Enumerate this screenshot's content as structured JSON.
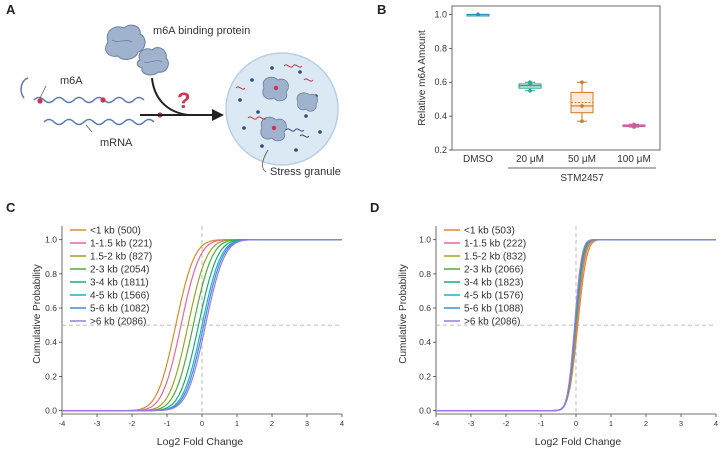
{
  "panel_a": {
    "label": "A",
    "binding_protein_label": "m6A binding protein",
    "m6a_label": "m6A",
    "mrna_label": "mRNA",
    "question_mark": "?",
    "stress_granule_label": "Stress granule"
  },
  "chart_data": [
    {
      "panel": "B",
      "type": "box",
      "title": "",
      "ylabel": "Relative m6A Amount",
      "xlabel": "",
      "ylim": [
        0.2,
        1.05
      ],
      "yticks": [
        0.2,
        0.4,
        0.6,
        0.8,
        1.0
      ],
      "ytick_labels": [
        "0.2",
        "0.4",
        "0.6",
        "0.8",
        "1.0"
      ],
      "categories": [
        "DMSO",
        "20 μM",
        "50 μM",
        "100 μM"
      ],
      "group_label": "STM2457",
      "colors": [
        "#2b8fb7",
        "#2aa58a",
        "#d07822",
        "#c95e9e"
      ],
      "boxes": [
        {
          "min": 1.0,
          "q1": 1.0,
          "median": 1.0,
          "q3": 1.0,
          "max": 1.0,
          "mean": 1.0
        },
        {
          "min": 0.55,
          "q1": 0.565,
          "median": 0.58,
          "q3": 0.59,
          "max": 0.6,
          "mean": 0.578
        },
        {
          "min": 0.37,
          "q1": 0.42,
          "median": 0.46,
          "q3": 0.54,
          "max": 0.6,
          "mean": 0.48
        },
        {
          "min": 0.335,
          "q1": 0.338,
          "median": 0.342,
          "q3": 0.348,
          "max": 0.352,
          "mean": 0.343
        }
      ],
      "points": [
        [
          1.0,
          1.0,
          1.0
        ],
        [
          0.55,
          0.59,
          0.6
        ],
        [
          0.37,
          0.46,
          0.6
        ],
        [
          0.335,
          0.342,
          0.352
        ]
      ]
    },
    {
      "panel": "C",
      "type": "line",
      "title": "",
      "xlabel": "Log2 Fold Change",
      "ylabel": "Cumulative Probability",
      "xlim": [
        -4,
        4
      ],
      "ylim": [
        -0.02,
        1.08
      ],
      "xticks": [
        -4,
        -3,
        -2,
        -1,
        0,
        1,
        2,
        3,
        4
      ],
      "xtick_labels": [
        "-4",
        "-3",
        "-2",
        "-1",
        "0",
        "1",
        "2",
        "3",
        "4"
      ],
      "yticks": [
        0.0,
        0.2,
        0.4,
        0.6,
        0.8,
        1.0
      ],
      "ytick_labels": [
        "0.0",
        "0.2",
        "0.4",
        "0.6",
        "0.8",
        "1.0"
      ],
      "reference_lines": {
        "x": 0,
        "y": 0.5
      },
      "legend_position": "top-left",
      "series": [
        {
          "name": "<1 kb (500)",
          "color": "#d98b2b",
          "median": -0.75,
          "spread": 0.42
        },
        {
          "name": "1-1.5 kb (221)",
          "color": "#e6679a",
          "median": -0.6,
          "spread": 0.42
        },
        {
          "name": "1.5-2 kb (827)",
          "color": "#9aa32a",
          "median": -0.4,
          "spread": 0.42
        },
        {
          "name": "2-3 kb (2054)",
          "color": "#4fad3a",
          "median": -0.25,
          "spread": 0.42
        },
        {
          "name": "3-4 kb (1811)",
          "color": "#22a57a",
          "median": -0.1,
          "spread": 0.42
        },
        {
          "name": "4-5 kb (1566)",
          "color": "#21b0c2",
          "median": 0.0,
          "spread": 0.42
        },
        {
          "name": "5-6 kb (1082)",
          "color": "#3c8ee0",
          "median": 0.05,
          "spread": 0.42
        },
        {
          "name": ">6 kb (2086)",
          "color": "#9c7be3",
          "median": 0.1,
          "spread": 0.42
        }
      ]
    },
    {
      "panel": "D",
      "type": "line",
      "title": "",
      "xlabel": "Log2 Fold Change",
      "ylabel": "Cumulative Probability",
      "xlim": [
        -4,
        4
      ],
      "ylim": [
        -0.02,
        1.08
      ],
      "xticks": [
        -4,
        -3,
        -2,
        -1,
        0,
        1,
        2,
        3,
        4
      ],
      "xtick_labels": [
        "-4",
        "-3",
        "-2",
        "-1",
        "0",
        "1",
        "2",
        "3",
        "4"
      ],
      "yticks": [
        0.0,
        0.2,
        0.4,
        0.6,
        0.8,
        1.0
      ],
      "ytick_labels": [
        "0.0",
        "0.2",
        "0.4",
        "0.6",
        "0.8",
        "1.0"
      ],
      "reference_lines": {
        "x": 0,
        "y": 0.5
      },
      "legend_position": "top-left",
      "series": [
        {
          "name": "<1 kb (503)",
          "color": "#d98b2b",
          "median": 0.05,
          "spread": 0.2
        },
        {
          "name": "1-1.5 kb (222)",
          "color": "#e6679a",
          "median": 0.02,
          "spread": 0.19
        },
        {
          "name": "1.5-2 kb (832)",
          "color": "#9aa32a",
          "median": 0.0,
          "spread": 0.18
        },
        {
          "name": "2-3 kb (2066)",
          "color": "#4fad3a",
          "median": -0.01,
          "spread": 0.17
        },
        {
          "name": "3-4 kb (1823)",
          "color": "#22a57a",
          "median": -0.02,
          "spread": 0.17
        },
        {
          "name": "4-5 kb (1576)",
          "color": "#21b0c2",
          "median": -0.03,
          "spread": 0.16
        },
        {
          "name": "5-6 kb (1088)",
          "color": "#3c8ee0",
          "median": -0.03,
          "spread": 0.16
        },
        {
          "name": ">6 kb (2086)",
          "color": "#9c7be3",
          "median": -0.04,
          "spread": 0.16
        }
      ]
    }
  ]
}
